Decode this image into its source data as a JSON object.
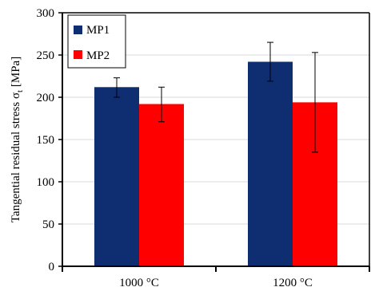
{
  "chart_data": {
    "type": "bar",
    "title": "",
    "xlabel": "",
    "ylabel": "Tangential residual stress σ",
    "ylabel_subscript": "t",
    "ylabel_unit": " [MPa]",
    "ylim": [
      0,
      300
    ],
    "yticks": [
      0,
      50,
      100,
      150,
      200,
      250,
      300
    ],
    "categories": [
      "1000 °C",
      "1200 °C"
    ],
    "grid": true,
    "legend_position": "top-left",
    "series": [
      {
        "name": "MP1",
        "color": "#0f2e72",
        "values": [
          212,
          242
        ],
        "error_low": [
          200,
          219
        ],
        "error_high": [
          223,
          265
        ]
      },
      {
        "name": "MP2",
        "color": "#ff0000",
        "values": [
          192,
          194
        ],
        "error_low": [
          171,
          135
        ],
        "error_high": [
          212,
          253
        ]
      }
    ]
  }
}
